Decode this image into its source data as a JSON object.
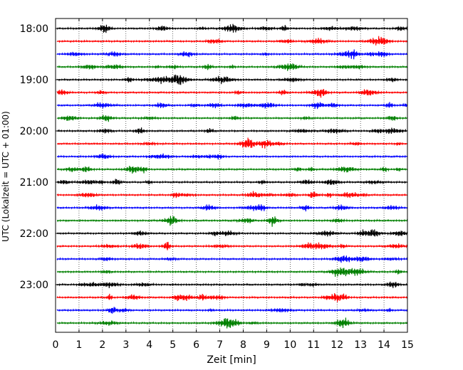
{
  "chart_data": {
    "type": "line",
    "title": "",
    "xlabel": "Zeit  [min]",
    "ylabel": "UTC (Lokalzeit = UTC + 01:00)",
    "xlim": [
      0,
      15
    ],
    "x_ticks": [
      0,
      1,
      2,
      3,
      4,
      5,
      6,
      7,
      8,
      9,
      10,
      11,
      12,
      13,
      14,
      15
    ],
    "x_tick_labels": [
      "0",
      "1",
      "2",
      "3",
      "4",
      "5",
      "6",
      "7",
      "8",
      "9",
      "10",
      "11",
      "12",
      "13",
      "14",
      "15"
    ],
    "y_tick_labels": [
      "18:00",
      "19:00",
      "20:00",
      "21:00",
      "22:00",
      "23:00"
    ],
    "grid": "vertical dotted at each minute",
    "trace_interval_minutes": 15,
    "start_time": "18:00",
    "trace_colors": [
      "#000000",
      "#ff0000",
      "#0000ff",
      "#008000"
    ],
    "traces": [
      {
        "start": "18:00",
        "color": "#000000"
      },
      {
        "start": "18:15",
        "color": "#ff0000"
      },
      {
        "start": "18:30",
        "color": "#0000ff"
      },
      {
        "start": "18:45",
        "color": "#008000"
      },
      {
        "start": "19:00",
        "color": "#000000"
      },
      {
        "start": "19:15",
        "color": "#ff0000"
      },
      {
        "start": "19:30",
        "color": "#0000ff"
      },
      {
        "start": "19:45",
        "color": "#008000"
      },
      {
        "start": "20:00",
        "color": "#000000"
      },
      {
        "start": "20:15",
        "color": "#ff0000"
      },
      {
        "start": "20:30",
        "color": "#0000ff"
      },
      {
        "start": "20:45",
        "color": "#008000"
      },
      {
        "start": "21:00",
        "color": "#000000"
      },
      {
        "start": "21:15",
        "color": "#ff0000"
      },
      {
        "start": "21:30",
        "color": "#0000ff"
      },
      {
        "start": "21:45",
        "color": "#008000"
      },
      {
        "start": "22:00",
        "color": "#000000"
      },
      {
        "start": "22:15",
        "color": "#ff0000"
      },
      {
        "start": "22:30",
        "color": "#0000ff"
      },
      {
        "start": "22:45",
        "color": "#008000"
      },
      {
        "start": "23:00",
        "color": "#000000"
      },
      {
        "start": "23:15",
        "color": "#ff0000"
      },
      {
        "start": "23:30",
        "color": "#0000ff"
      },
      {
        "start": "23:45",
        "color": "#008000"
      }
    ]
  }
}
